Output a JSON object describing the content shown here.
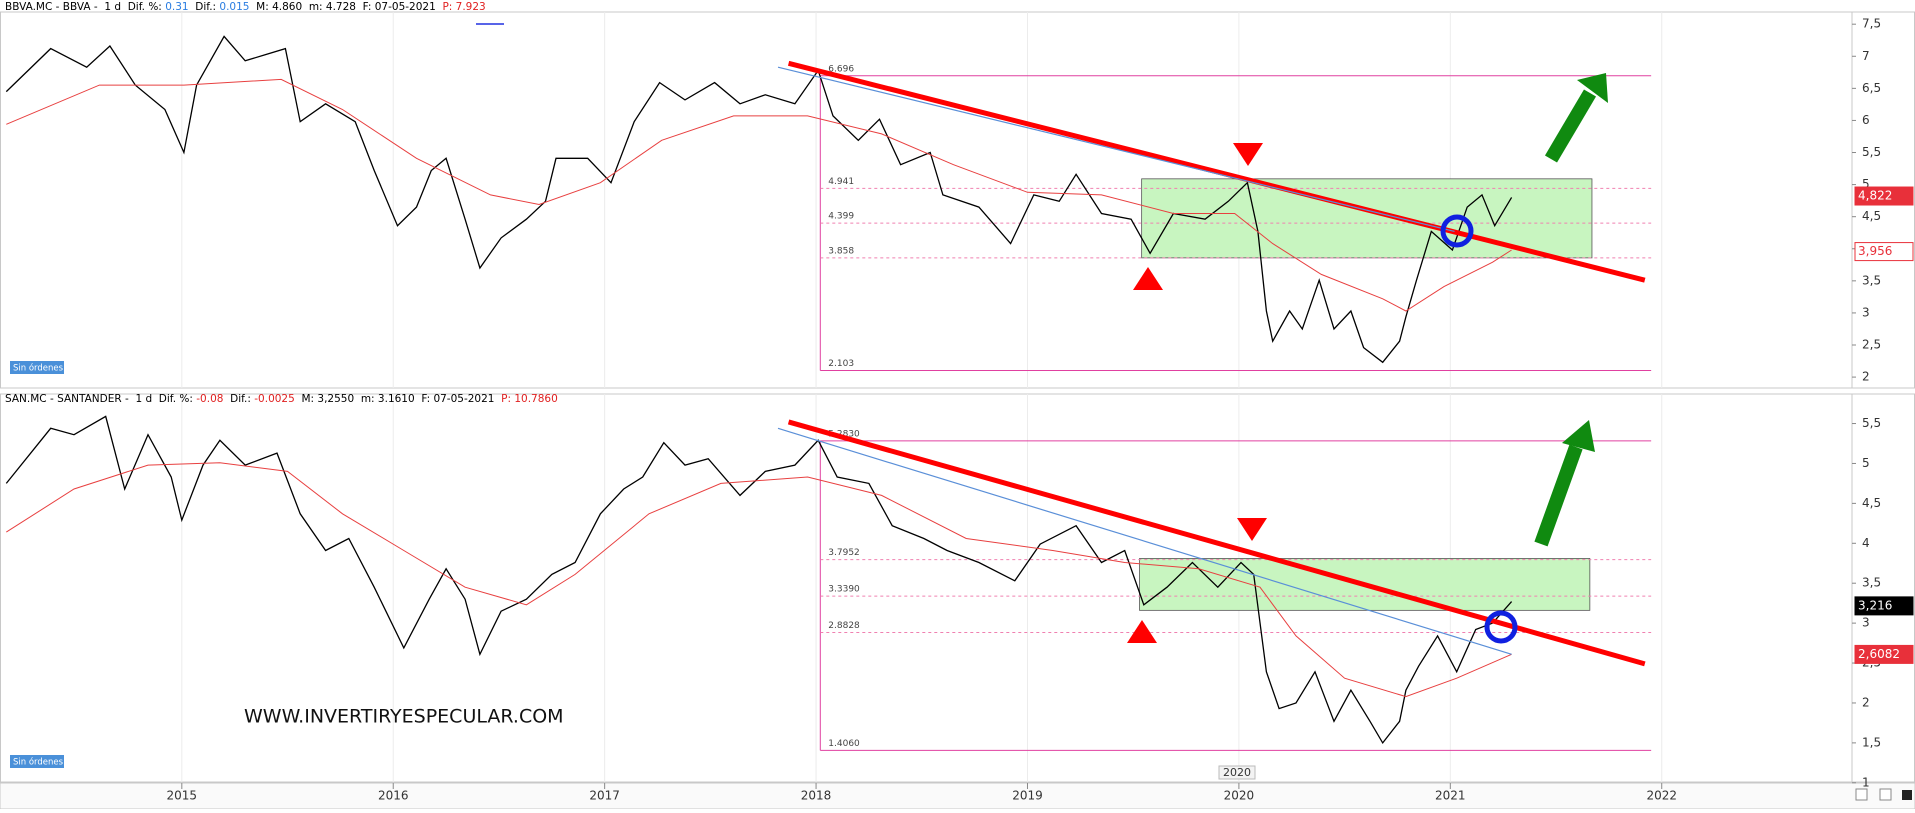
{
  "chart_data": [
    {
      "type": "line",
      "header": [
        {
          "text": "BBVA.MC - BBVA -  1 d  Dif. %: ",
          "color": "#000000"
        },
        {
          "text": "0.31",
          "color": "#2a7de1"
        },
        {
          "text": "  Dif.: ",
          "color": "#000000"
        },
        {
          "text": "0.015",
          "color": "#2a7de1"
        },
        {
          "text": "  M: 4.860  m: 4.728  F: 07-05-2021  ",
          "color": "#000000"
        },
        {
          "text": "P: 7.923",
          "color": "#e02020"
        }
      ],
      "series": [
        {
          "color": "#000000",
          "x": [
            2014.17,
            2014.38,
            2014.55,
            2014.66,
            2014.78,
            2014.92,
            2015.01,
            2015.07,
            2015.2,
            2015.3,
            2015.39,
            2015.49,
            2015.56,
            2015.68,
            2015.82,
            2015.91,
            2016.02,
            2016.11,
            2016.18,
            2016.25,
            2016.34,
            2016.41,
            2016.51,
            2016.63,
            2016.72,
            2016.77,
            2016.92,
            2017.03,
            2017.14,
            2017.26,
            2017.38,
            2017.52,
            2017.64,
            2017.76,
            2017.9,
            2018.01,
            2018.08,
            2018.2,
            2018.3,
            2018.4,
            2018.54,
            2018.6,
            2018.77,
            2018.92,
            2019.03,
            2019.15,
            2019.23,
            2019.35,
            2019.49,
            2019.58,
            2019.69,
            2019.84,
            2019.95,
            2020.04,
            2020.09,
            2020.13,
            2020.16,
            2020.24,
            2020.3,
            2020.38,
            2020.45,
            2020.53,
            2020.59,
            2020.68,
            2020.76,
            2020.79,
            2020.84,
            2020.91,
            2021.01,
            2021.08,
            2021.15,
            2021.21,
            2021.29
          ],
          "values": [
            6.45,
            7.12,
            6.83,
            7.16,
            6.55,
            6.17,
            5.5,
            6.55,
            7.31,
            6.93,
            7.02,
            7.12,
            5.98,
            6.26,
            5.98,
            5.22,
            4.36,
            4.65,
            5.22,
            5.41,
            4.46,
            3.7,
            4.17,
            4.46,
            4.74,
            5.41,
            5.41,
            5.03,
            5.98,
            6.59,
            6.32,
            6.59,
            6.26,
            6.4,
            6.26,
            6.78,
            6.07,
            5.69,
            6.02,
            5.31,
            5.5,
            4.84,
            4.65,
            4.08,
            4.84,
            4.74,
            5.16,
            4.55,
            4.46,
            3.93,
            4.55,
            4.46,
            4.74,
            5.03,
            4.27,
            3.03,
            2.56,
            3.03,
            2.75,
            3.51,
            2.75,
            3.03,
            2.46,
            2.23,
            2.56,
            2.94,
            3.51,
            4.27,
            3.98,
            4.65,
            4.84,
            4.36,
            4.8
          ]
        },
        {
          "color": "#e84040",
          "x": [
            2014.17,
            2014.61,
            2015.01,
            2015.47,
            2015.76,
            2016.11,
            2016.46,
            2016.69,
            2016.98,
            2017.27,
            2017.61,
            2017.96,
            2018.31,
            2018.65,
            2019.0,
            2019.35,
            2019.69,
            2019.98,
            2020.16,
            2020.39,
            2020.68,
            2020.79,
            2020.97,
            2021.2,
            2021.29
          ],
          "values": [
            5.94,
            6.55,
            6.55,
            6.64,
            6.17,
            5.41,
            4.84,
            4.69,
            5.03,
            5.69,
            6.07,
            6.07,
            5.79,
            5.31,
            4.88,
            4.84,
            4.55,
            4.55,
            4.08,
            3.6,
            3.22,
            3.03,
            3.41,
            3.79,
            3.98
          ]
        }
      ],
      "trendlines": [
        {
          "color": "#ff0000",
          "width": 5,
          "x": [
            2017.87,
            2021.92
          ],
          "values": [
            6.89,
            3.51
          ]
        },
        {
          "color": "#5a8fd8",
          "width": 1.2,
          "x": [
            2017.82,
            2021.02
          ],
          "values": [
            6.83,
            4.27
          ]
        }
      ],
      "zone": {
        "color": "#c8f5c0",
        "x": [
          2019.54,
          2021.67
        ],
        "y": [
          3.858,
          5.09
        ]
      },
      "level_x": [
        2018.02,
        2021.95
      ],
      "levels": [
        {
          "value": 6.696,
          "style": "solid"
        },
        {
          "value": 4.941,
          "style": "dashed"
        },
        {
          "value": 4.399,
          "style": "dashed"
        },
        {
          "value": 3.858,
          "style": "dashed"
        },
        {
          "value": 2.103,
          "style": "solid"
        }
      ],
      "price_tags": [
        {
          "value": 4.822,
          "label": "4,822",
          "color": "#e8303a",
          "style": "filled"
        },
        {
          "value": 3.956,
          "label": "3,956",
          "color": "#e8303a",
          "style": "outline"
        }
      ],
      "xlim": [
        2014.14,
        2022.9
      ],
      "ylim": [
        1.83,
        7.69
      ],
      "yticks": [
        2,
        {
          "value": 2.5,
          "label": "2,5"
        },
        3,
        {
          "value": 3.5,
          "label": "3,5"
        },
        4,
        {
          "value": 4.5,
          "label": "4,5"
        },
        5,
        {
          "value": 5.5,
          "label": "5,5"
        },
        6,
        {
          "value": 6.5,
          "label": "6,5"
        },
        7,
        {
          "value": 7.5,
          "label": "7,5"
        }
      ],
      "button": "Sin órdenes"
    },
    {
      "type": "line",
      "header": [
        {
          "text": "SAN.MC - SANTANDER -  1 d  Dif. %: ",
          "color": "#000000"
        },
        {
          "text": "-0.08",
          "color": "#e02020"
        },
        {
          "text": "  Dif.: ",
          "color": "#000000"
        },
        {
          "text": "-0.0025",
          "color": "#e02020"
        },
        {
          "text": "  M: 3,2550  m: 3.1610  F: 07-05-2021  ",
          "color": "#000000"
        },
        {
          "text": "P: 10.7860",
          "color": "#e02020"
        }
      ],
      "series": [
        {
          "color": "#000000",
          "x": [
            2014.17,
            2014.38,
            2014.49,
            2014.64,
            2014.73,
            2014.84,
            2014.95,
            2015.0,
            2015.1,
            2015.18,
            2015.3,
            2015.45,
            2015.56,
            2015.68,
            2015.79,
            2015.91,
            2016.05,
            2016.17,
            2016.25,
            2016.34,
            2016.41,
            2016.51,
            2016.63,
            2016.75,
            2016.86,
            2016.98,
            2017.09,
            2017.18,
            2017.28,
            2017.38,
            2017.49,
            2017.64,
            2017.76,
            2017.9,
            2018.01,
            2018.1,
            2018.25,
            2018.36,
            2018.51,
            2018.62,
            2018.77,
            2018.94,
            2019.06,
            2019.23,
            2019.35,
            2019.46,
            2019.55,
            2019.66,
            2019.78,
            2019.9,
            2020.01,
            2020.07,
            2020.13,
            2020.19,
            2020.27,
            2020.36,
            2020.45,
            2020.53,
            2020.62,
            2020.68,
            2020.76,
            2020.79,
            2020.85,
            2020.94,
            2021.03,
            2021.12,
            2021.2,
            2021.29
          ],
          "values": [
            4.75,
            5.44,
            5.36,
            5.59,
            4.68,
            5.36,
            4.83,
            4.29,
            4.98,
            5.29,
            4.98,
            5.13,
            4.37,
            3.91,
            4.06,
            3.45,
            2.69,
            3.3,
            3.68,
            3.3,
            2.61,
            3.15,
            3.3,
            3.61,
            3.76,
            4.37,
            4.68,
            4.83,
            5.26,
            4.98,
            5.06,
            4.6,
            4.9,
            4.98,
            5.29,
            4.83,
            4.75,
            4.22,
            4.06,
            3.91,
            3.76,
            3.53,
            3.99,
            4.22,
            3.76,
            3.91,
            3.23,
            3.45,
            3.76,
            3.45,
            3.76,
            3.61,
            2.39,
            1.93,
            2.0,
            2.39,
            1.77,
            2.16,
            1.77,
            1.5,
            1.77,
            2.16,
            2.46,
            2.84,
            2.39,
            2.92,
            3.0,
            3.27
          ]
        },
        {
          "color": "#e84040",
          "x": [
            2014.17,
            2014.49,
            2014.84,
            2015.18,
            2015.5,
            2015.76,
            2016.05,
            2016.34,
            2016.63,
            2016.86,
            2017.21,
            2017.55,
            2017.96,
            2018.31,
            2018.71,
            2019.12,
            2019.46,
            2019.81,
            2020.1,
            2020.27,
            2020.5,
            2020.79,
            2021.03,
            2021.29
          ],
          "values": [
            4.14,
            4.68,
            4.98,
            5.01,
            4.9,
            4.37,
            3.91,
            3.45,
            3.23,
            3.61,
            4.37,
            4.75,
            4.83,
            4.6,
            4.06,
            3.91,
            3.76,
            3.68,
            3.45,
            2.84,
            2.31,
            2.08,
            2.31,
            2.61
          ]
        }
      ],
      "trendlines": [
        {
          "color": "#ff0000",
          "width": 5,
          "x": [
            2017.87,
            2021.92
          ],
          "values": [
            5.52,
            2.49
          ]
        },
        {
          "color": "#5a8fd8",
          "width": 1.2,
          "x": [
            2017.82,
            2021.29
          ],
          "values": [
            5.44,
            2.61
          ]
        }
      ],
      "zone": {
        "color": "#c8f5c0",
        "x": [
          2019.53,
          2021.66
        ],
        "y": [
          3.16,
          3.81
        ]
      },
      "level_x": [
        2018.02,
        2021.95
      ],
      "levels": [
        {
          "value": 5.283,
          "label": "5.2830",
          "style": "solid"
        },
        {
          "value": 3.7952,
          "style": "dashed"
        },
        {
          "value": 3.339,
          "label": "3.3390",
          "style": "dashed"
        },
        {
          "value": 2.8828,
          "style": "dashed"
        },
        {
          "value": 1.406,
          "label": "1.4060",
          "style": "solid"
        }
      ],
      "price_tags": [
        {
          "value": 3.216,
          "label": "3,216",
          "color": "#000000",
          "style": "filled"
        },
        {
          "value": 2.6082,
          "label": "2,6082",
          "color": "#e8303a",
          "style": "filled"
        }
      ],
      "xlim": [
        2014.14,
        2022.9
      ],
      "ylim": [
        1.01,
        5.87
      ],
      "yticks": [
        1,
        {
          "value": 1.5,
          "label": "1,5"
        },
        2,
        {
          "value": 2.5,
          "label": "2,5"
        },
        3,
        {
          "value": 3.5,
          "label": "3,5"
        },
        4,
        {
          "value": 4.5,
          "label": "4,5"
        },
        5,
        {
          "value": 5.5,
          "label": "5,5"
        }
      ],
      "xticks": [
        2015,
        2016,
        2017,
        2018,
        2019,
        2020,
        2021,
        2022
      ],
      "button": "Sin órdenes"
    }
  ],
  "watermark": "WWW.INVERTIRYESPECULAR.COM",
  "cursor_label": "2020"
}
